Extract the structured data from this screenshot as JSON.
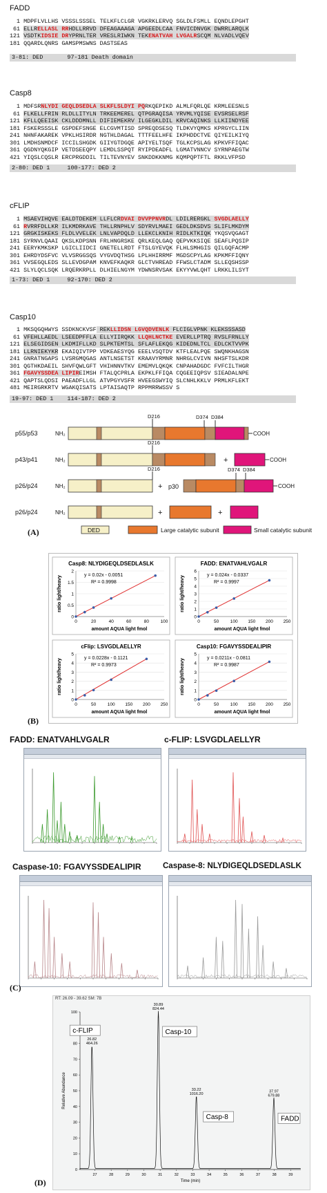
{
  "fadd": {
    "title": "FADD",
    "lines": [
      {
        "num": "1",
        "segs": [
          {
            "t": "MDPFLVLLHS VSSSLSSSEL TELKFLCLGR VGKRKLERVQ SGLDLFSMLL EQNDLEPGHT",
            "c": "p"
          }
        ]
      },
      {
        "num": "61",
        "segs": [
          {
            "t": "ELLR",
            "c": "h"
          },
          {
            "t": "ELLASL",
            "c": "r"
          },
          {
            "t": " ",
            "c": "h"
          },
          {
            "t": "RR",
            "c": "r"
          },
          {
            "t": "HDLLRRVD DFEAGAAAGA APGEEDLCAA FNVICDNVGK DWRRLARQLK",
            "c": "h"
          }
        ]
      },
      {
        "num": "121",
        "segs": [
          {
            "t": "VSDTK",
            "c": "h"
          },
          {
            "t": "IDSIE DR",
            "c": "r"
          },
          {
            "t": "YPRNLTER VRESLRIWKN TEK",
            "c": "h"
          },
          {
            "t": "ENATVAH LVGALR",
            "c": "r"
          },
          {
            "t": "SCQM NLVADLVQEV",
            "c": "h"
          }
        ]
      },
      {
        "num": "181",
        "segs": [
          {
            "t": "QQARDLQNRS GAMSPMSWNS DASTSEAS",
            "c": "p"
          }
        ]
      }
    ],
    "domains": "3-81: DED       97-181 Death domain"
  },
  "casp8": {
    "title": "Casp8",
    "lines": [
      {
        "num": "1",
        "segs": [
          {
            "t": "MDFSR",
            "c": "p"
          },
          {
            "t": "NLYDI GEQLDSEDLA SLKFLSLDYI PQ",
            "c": "r"
          },
          {
            "t": "RKQEPIKD ALMLFQRLQE KRMLEESNLS",
            "c": "p"
          }
        ]
      },
      {
        "num": "61",
        "segs": [
          {
            "t": "FLKELLFRIN RLDLLITYLN TRKEEMEREL QTPGRAQISA YRVMLYQISE EVSRSELRSF",
            "c": "h"
          }
        ]
      },
      {
        "num": "121",
        "segs": [
          {
            "t": "KFLLQEEISK CKLDDDMNLL DIFIEMEKRV ILGEGKLDIL KRVCAQINKS LLKIINDYEE",
            "c": "h"
          }
        ]
      },
      {
        "num": "181",
        "segs": [
          {
            "t": "FSKERSSSLE GSPDEFSNGE ELCGVMTISD SPREQDSESQ TLDKVYQMKS KPRGYCLIIN",
            "c": "p"
          }
        ]
      },
      {
        "num": "241",
        "segs": [
          {
            "t": "NHNFAKAREK VPKLHSIRDR NGTHLDAGAL TTTFEELHFE IKPHDDCTVE QIYEILKIYQ",
            "c": "p"
          }
        ]
      },
      {
        "num": "301",
        "segs": [
          {
            "t": "LMDHSNMDCF ICCILSHGDK GIIYGTDGQE APIYELTSQF TGLKCPSLAG KPKVFFIQAC",
            "c": "p"
          }
        ]
      },
      {
        "num": "361",
        "segs": [
          {
            "t": "QGDNYQKGIP VETDSEEQPY LEMDLSSPQT RYIPDEADFL LGMATVNNCV SYRNPAEGTW",
            "c": "p"
          }
        ]
      },
      {
        "num": "421",
        "segs": [
          {
            "t": "YIQSLCQSLR ERCPRGDDIL TILTEVNYEV SNKDDKKNMG KQMPQPTFTL RKKLVFPSD",
            "c": "p"
          }
        ]
      }
    ],
    "domains": "2-80: DED 1     100-177: DED 2"
  },
  "cflip": {
    "title": "cFLIP",
    "lines": [
      {
        "num": "1",
        "segs": [
          {
            "t": "MSAEVIHQVE EALDTDEKEM LLFLCR",
            "c": "h"
          },
          {
            "t": "DVAI DVVPPNVR",
            "c": "r"
          },
          {
            "t": "DL LDILRERGKL",
            "c": "h"
          },
          {
            "t": " SVGDLAELLY",
            "c": "r"
          }
        ]
      },
      {
        "num": "61",
        "segs": [
          {
            "t": "R",
            "c": "r"
          },
          {
            "t": "VRRFDLLKR ILKMDRKAVE THLLRNPHLV SDYRVLMAEI GEDLDKSDVS SLIFLMKDYM",
            "c": "h"
          }
        ]
      },
      {
        "num": "121",
        "segs": [
          {
            "t": "GRGKISKEKS FLDLVVELEK LNLVAPDQLD LLEKCLKNIH RIDLKTKIQK",
            "c": "h"
          },
          {
            "t": " YKQSVQGAGT",
            "c": "p"
          }
        ]
      },
      {
        "num": "181",
        "segs": [
          {
            "t": "SYRNVLQAAI QKSLKDPSNN FRLHNGRSKE QRLKEQLGAQ QEPVKKSIQE SEAFLPQSIP",
            "c": "p"
          }
        ]
      },
      {
        "num": "241",
        "segs": [
          {
            "t": "EERYKMKSKP LGICLIIDCI GNETELLRDT FTSLGYEVQK FLHLSMHGIS QILGQFACMP",
            "c": "p"
          }
        ]
      },
      {
        "num": "301",
        "segs": [
          {
            "t": "EHRDYDSFVC VLVSRGGSQS VYGVDQTHSG LPLHHIRRMF MGDSCPYLAG KPKMFFIQNY",
            "c": "p"
          }
        ]
      },
      {
        "num": "361",
        "segs": [
          {
            "t": "VVSEGQLEDS SLLEVDGPAM KNVEFKAQKR GLCTVHREAD FFWSLCTADM SLLEQSHSSP",
            "c": "p"
          }
        ]
      },
      {
        "num": "421",
        "segs": [
          {
            "t": "SLYLQCLSQK LRQERKRPLL DLHIELNGYM YDWNSRVSAK EKYYVWLQHT LRKKLILSYT",
            "c": "p"
          }
        ]
      }
    ],
    "domains": "1-73: DED 1     92-170: DED 2"
  },
  "casp10": {
    "title": "Casp10",
    "lines": [
      {
        "num": "1",
        "segs": [
          {
            "t": "MKSQGQHWYS SSDKNCKVSF",
            "c": "p"
          },
          {
            "t": " REK",
            "c": "h"
          },
          {
            "t": "LLIDSN LGVQDVENLK",
            "c": "r"
          },
          {
            "t": " FLCIGLVPNK KLEKSSSASD",
            "c": "h"
          }
        ]
      },
      {
        "num": "61",
        "segs": [
          {
            "t": "VFEHLLAEDL LSEEDPFFLA ELLYIIRQKK ",
            "c": "h"
          },
          {
            "t": "LLQHLNCTKE",
            "c": "r"
          },
          {
            "t": " EVERLLPTRQ RVSLFRNLLY",
            "c": "h"
          }
        ]
      },
      {
        "num": "121",
        "segs": [
          {
            "t": "ELSEGIDSEN LKDMIFLLKD SLPKTEMTSL SFLAFLEKQG KIDEDNLTCL EDLCKTVVPK",
            "c": "h"
          }
        ]
      },
      {
        "num": "181",
        "segs": [
          {
            "t": "LLRNIEKYKR",
            "c": "h"
          },
          {
            "t": " EKAIQIVTPP VDKEAESYQG EEELVSQTDV KTFLEALPQE SWQNKHAGSN",
            "c": "p"
          }
        ]
      },
      {
        "num": "241",
        "segs": [
          {
            "t": "GNRATNGAPS LVSRGMQGAS ANTLNSETST KRAAVYRMNR NHRGLCVIVN NHSFTSLKDR",
            "c": "p"
          }
        ]
      },
      {
        "num": "301",
        "segs": [
          {
            "t": "QGTHKDAEIL SHVFQWLGFT VHIHNNVTKV EMEMVLQKQK CNPAHADGDC FVFCILTHGR",
            "c": "p"
          }
        ]
      },
      {
        "num": "361",
        "segs": [
          {
            "t": "FGAVYSSDEA LIPIR",
            "c": "r"
          },
          {
            "t": "EIMSH FTALQCPRLA EKPKLFFIQA CQGEEIQPSV SIEADALNPE",
            "c": "p"
          }
        ]
      },
      {
        "num": "421",
        "segs": [
          {
            "t": "QAPTSLQDSI PAEADFLLGL ATVPGYVSFR HVEEGSWYIQ SLCNHLKKLV PRMLKFLEKT",
            "c": "p"
          }
        ]
      },
      {
        "num": "481",
        "segs": [
          {
            "t": "MEIRGRKRTV WGAKQISATS LPTAISAQTP RPPMRRWSSV S",
            "c": "p"
          }
        ]
      }
    ],
    "domains": "19-97: DED 1    114-187: DED 2"
  },
  "diagram": {
    "rows": [
      {
        "label": "p55/p53",
        "nh2": "NH₂",
        "cooh": "COOH"
      },
      {
        "label": "p43/p41",
        "nh2": "NH₂",
        "cooh": "COOH",
        "plus": "+"
      },
      {
        "label": "p26/p24",
        "nh2": "NH₂",
        "cooh": "COOH",
        "plus": "+",
        "mid": "p30"
      },
      {
        "label": "p26/p24",
        "nh2": "NH₂",
        "plus": "+",
        "plus2": "+"
      }
    ],
    "sites": {
      "d216": "D216",
      "d374": "D374",
      "d384": "D384"
    },
    "legend": {
      "ded": "DED",
      "large": "Large catalytic subunit",
      "small": "Small catalytic subunit"
    },
    "panel": "(A)",
    "colors": {
      "ded": "#f6f0c8",
      "large": "#e8782e",
      "small": "#e0157a",
      "linker": "#b98a63"
    }
  },
  "panelB": {
    "label": "(B)",
    "charts": [
      {
        "title": "Casp8: NLYDIGEQLDSEDLASLK",
        "eq": "y = 0.02x - 0.0051",
        "r2": "R² = 0.9998",
        "xlabel": "amount AQUA light fmol",
        "ylabel": "ratio light/heavy",
        "xticks": [
          "0",
          "20",
          "40",
          "60",
          "80",
          "100"
        ],
        "yticks": [
          "0",
          "0.5",
          "1",
          "1.5",
          "2"
        ]
      },
      {
        "title": "FADD:  ENATVAHLVGALR",
        "eq": "y = 0.024x - 0.0337",
        "r2": "R² = 0.9997",
        "xlabel": "amount AQUA light fmol",
        "ylabel": "ratio light/heavy",
        "xticks": [
          "0",
          "50",
          "100",
          "150",
          "200",
          "250"
        ],
        "yticks": [
          "0",
          "1",
          "2",
          "3",
          "4",
          "5",
          "6"
        ]
      },
      {
        "title": "cFlip: LSVGDLAELLYR",
        "eq": "y = 0.0228x - 0.1121",
        "r2": "R² = 0.9973",
        "xlabel": "amount AQUA light fmol",
        "ylabel": "ratio light/heavy",
        "xticks": [
          "0",
          "50",
          "100",
          "150",
          "200",
          "250"
        ],
        "yticks": [
          "0",
          "1",
          "2",
          "3",
          "4",
          "5"
        ]
      },
      {
        "title": "Casp10: FGAVYSSDEALIPIR",
        "eq": "y = 0.0211x - 0.0811",
        "r2": "R² = 0.9987",
        "xlabel": "amount AQUA light fmol",
        "ylabel": "ratio light/heavy",
        "xticks": [
          "0",
          "50",
          "100",
          "150",
          "200",
          "250"
        ],
        "yticks": [
          "0",
          "1",
          "2",
          "3",
          "4",
          "5"
        ]
      }
    ]
  },
  "panelC": {
    "label": "(C)",
    "spectra": [
      {
        "title": "FADD:  ENATVAHLVGALR",
        "color": "#3c9a2e"
      },
      {
        "title": "c-FLIP: LSVGDLAELLYR",
        "color": "#e05353"
      },
      {
        "title": "Caspase-10: FGAVYSSDEALIPIR",
        "color": "#b8868a"
      },
      {
        "title": "Caspase-8: NLYDIGEQLDSEDLASLK",
        "color": "#9a9a9a"
      }
    ]
  },
  "panelD": {
    "label": "(D)",
    "rt": "RT: 26.09 - 39.62  SM: 7B",
    "ylabel": "Relative Abundance",
    "xlabel": "Time (min)",
    "peaks": [
      {
        "name": "c-FLIP",
        "rt": "26.82",
        "mz": "464.26"
      },
      {
        "name": "Casp-10",
        "rt": "30.89",
        "mz": "824.44"
      },
      {
        "name": "Casp-8",
        "rt": "33.22",
        "mz": "1016.20"
      },
      {
        "name": "FADD",
        "rt": "37.97",
        "mz": "679.88"
      }
    ],
    "xticks": [
      "27",
      "28",
      "29",
      "30",
      "31",
      "32",
      "33",
      "34",
      "35",
      "36",
      "37",
      "38",
      "39"
    ],
    "yticks": [
      "0",
      "10",
      "20",
      "30",
      "40",
      "50",
      "60",
      "70",
      "80",
      "90",
      "100"
    ]
  }
}
